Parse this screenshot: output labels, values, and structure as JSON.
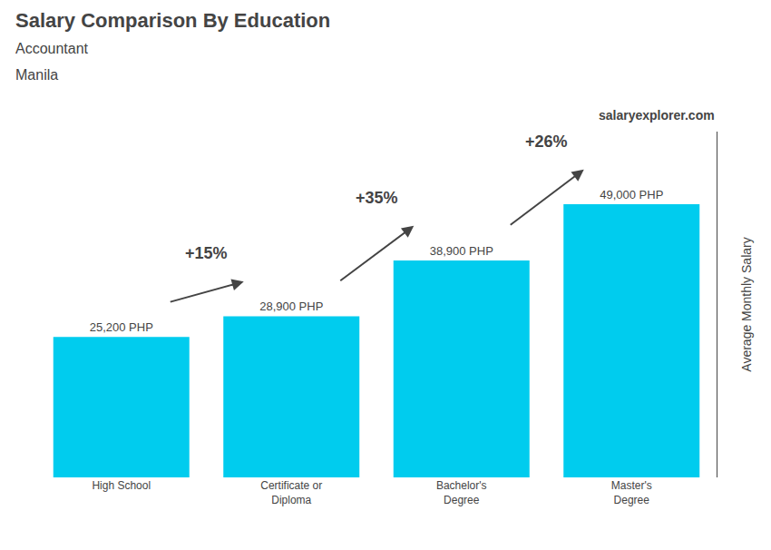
{
  "chart_data": {
    "type": "bar",
    "title": "Salary Comparison By Education",
    "subtitle": [
      "Accountant",
      "Manila"
    ],
    "categories": [
      "High School",
      "Certificate or\nDiploma",
      "Bachelor's\nDegree",
      "Master's\nDegree"
    ],
    "values": [
      25200,
      28900,
      38900,
      49000
    ],
    "value_labels": [
      "25,200 PHP",
      "28,900 PHP",
      "38,900 PHP",
      "49,000 PHP"
    ],
    "data_labels": true,
    "color": "#00ccee",
    "ylabel": "Average Monthly Salary",
    "ylim": [
      0,
      62000
    ],
    "tick_labels": "x",
    "grid": false,
    "annotations": [
      {
        "text": "+15%",
        "from": "High School",
        "to": "Certificate or\nDiploma"
      },
      {
        "text": "+35%",
        "from": "Certificate or\nDiploma",
        "to": "Bachelor's\nDegree"
      },
      {
        "text": "+26%",
        "from": "Bachelor's\nDegree",
        "to": "Master's\nDegree"
      },
      {
        "text": "salaryexplorer.com"
      }
    ]
  }
}
